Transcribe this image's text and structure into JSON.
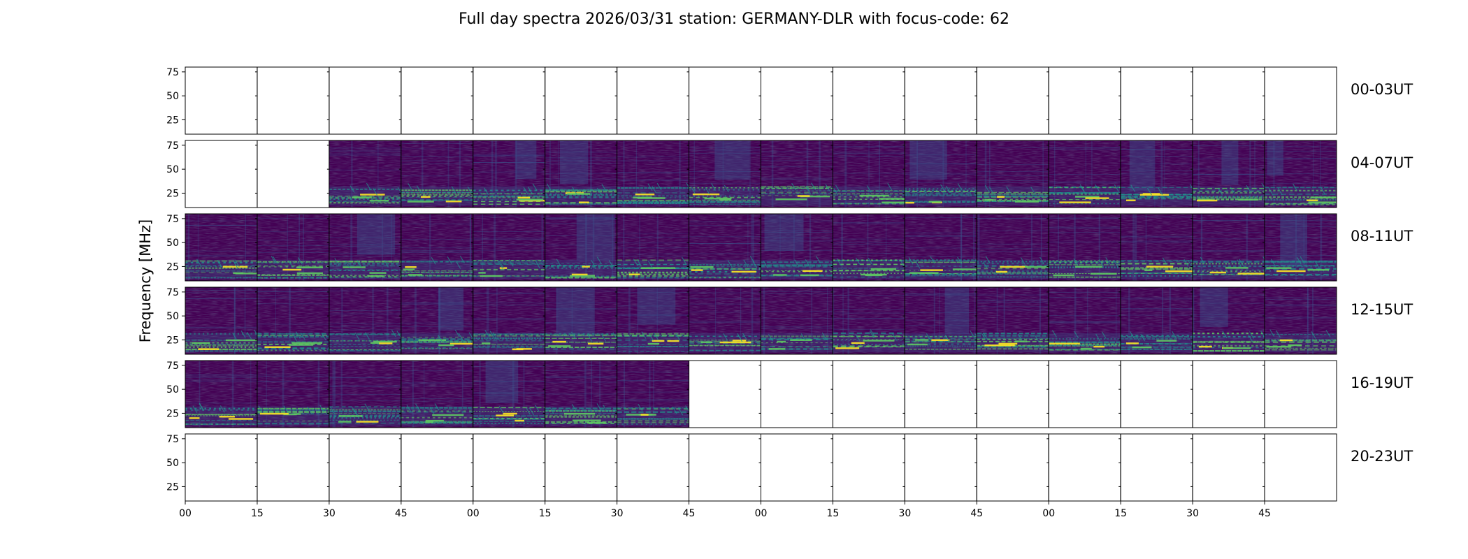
{
  "chart_data": {
    "type": "heatmap",
    "title": "Full day spectra 2026/03/31 station: GERMANY-DLR with focus-code: 62",
    "ylabel": "Frequency [MHz]",
    "xlabel": "",
    "ylim": [
      10,
      80
    ],
    "y_ticks": [
      "25",
      "50",
      "75"
    ],
    "y_tick_values": [
      25,
      50,
      75
    ],
    "x_ticks": [
      "00",
      "15",
      "30",
      "45",
      "00",
      "15",
      "30",
      "45",
      "00",
      "15",
      "30",
      "45",
      "00",
      "15",
      "30",
      "45"
    ],
    "colormap": [
      "#440154",
      "#3b528b",
      "#21918c",
      "#5ec962",
      "#fde725"
    ],
    "rows": [
      {
        "label": "00-03UT",
        "data_panels": []
      },
      {
        "label": "04-07UT",
        "data_panels": [
          2,
          3,
          4,
          5,
          6,
          7,
          8,
          9,
          10,
          11,
          12,
          13,
          14,
          15
        ]
      },
      {
        "label": "08-11UT",
        "data_panels": [
          0,
          1,
          2,
          3,
          4,
          5,
          6,
          7,
          8,
          9,
          10,
          11,
          12,
          13,
          14,
          15
        ]
      },
      {
        "label": "12-15UT",
        "data_panels": [
          0,
          1,
          2,
          3,
          4,
          5,
          6,
          7,
          8,
          9,
          10,
          11,
          12,
          13,
          14,
          15
        ]
      },
      {
        "label": "16-19UT",
        "data_panels": [
          0,
          1,
          2,
          3,
          4,
          5,
          6
        ]
      },
      {
        "label": "20-23UT",
        "data_panels": []
      }
    ]
  }
}
